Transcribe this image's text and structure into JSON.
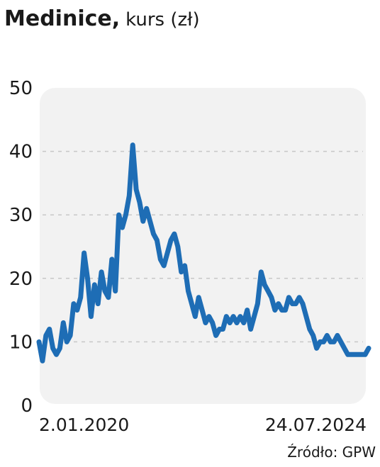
{
  "chart_data": {
    "type": "line",
    "title": "Medinice,",
    "subtitle": "kurs (zł)",
    "source": "Źródło: GPW",
    "categories": [
      "2.01.2020",
      null,
      null,
      null,
      null,
      null,
      null,
      null,
      null,
      null,
      null,
      null,
      null,
      null,
      null,
      null,
      null,
      null,
      null,
      null,
      null,
      null,
      null,
      null,
      null,
      null,
      null,
      null,
      null,
      null,
      null,
      null,
      null,
      null,
      null,
      null,
      null,
      null,
      null,
      null,
      null,
      null,
      null,
      null,
      null,
      null,
      null,
      null,
      null,
      null,
      null,
      null,
      null,
      null,
      null,
      null,
      null,
      null,
      null,
      null,
      null,
      null,
      null,
      null,
      null,
      null,
      null,
      null,
      null,
      null,
      null,
      null,
      null,
      null,
      null,
      null,
      null,
      null,
      null,
      null,
      null,
      null,
      null,
      null,
      null,
      null,
      null,
      null,
      null,
      null,
      null,
      null,
      null,
      null,
      null,
      "24.07.2024"
    ],
    "values": [
      10,
      7,
      11,
      12,
      9,
      8,
      9,
      13,
      10,
      11,
      16,
      15,
      17,
      24,
      20,
      14,
      19,
      16,
      21,
      18,
      17,
      23,
      18,
      30,
      28,
      30,
      33,
      41,
      34,
      32,
      29,
      31,
      29,
      27,
      26,
      23,
      22,
      24,
      26,
      27,
      25,
      21,
      22,
      18,
      16,
      14,
      17,
      15,
      13,
      14,
      13,
      11,
      12,
      12,
      14,
      13,
      14,
      13,
      14,
      13,
      15,
      12,
      14,
      16,
      21,
      19,
      18,
      17,
      15,
      16,
      15,
      15,
      17,
      16,
      16,
      17,
      16,
      14,
      12,
      11,
      9,
      10,
      10,
      11,
      10,
      10,
      11,
      10,
      9,
      8,
      8,
      8,
      8,
      8,
      8,
      9
    ],
    "color": "#1e6db5",
    "ylim": [
      0,
      50
    ],
    "yticks": [
      0,
      10,
      20,
      30,
      40,
      50
    ],
    "grid": true
  }
}
